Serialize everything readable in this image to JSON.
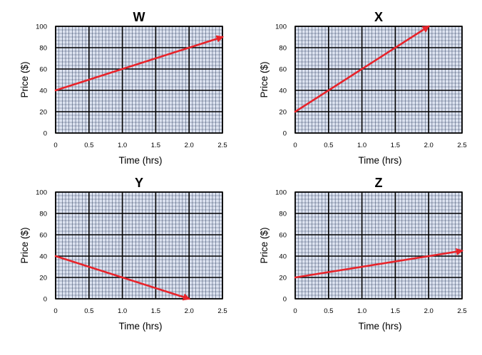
{
  "colors": {
    "grid_bg": "#dde3f0",
    "minor_grid": "#223355",
    "major_grid": "#000000",
    "series": "#e8232a"
  },
  "chart_data": [
    {
      "type": "line",
      "title": "W",
      "xlabel": "Time (hrs)",
      "ylabel": "Price ($)",
      "xlim": [
        0,
        2.5
      ],
      "ylim": [
        0,
        100
      ],
      "xticks": [
        "0",
        "0.5",
        "1.0",
        "1.5",
        "2.0",
        "2.5"
      ],
      "yticks": [
        "0",
        "20",
        "40",
        "60",
        "80",
        "100"
      ],
      "x": [
        0,
        2.5
      ],
      "y": [
        40,
        90
      ]
    },
    {
      "type": "line",
      "title": "X",
      "xlabel": "Time (hrs)",
      "ylabel": "Price ($)",
      "xlim": [
        0,
        2.5
      ],
      "ylim": [
        0,
        100
      ],
      "xticks": [
        "0",
        "0.5",
        "1.0",
        "1.5",
        "2.0",
        "2.5"
      ],
      "yticks": [
        "0",
        "20",
        "40",
        "60",
        "80",
        "100"
      ],
      "x": [
        0,
        2.0
      ],
      "y": [
        20,
        100
      ]
    },
    {
      "type": "line",
      "title": "Y",
      "xlabel": "Time (hrs)",
      "ylabel": "Price ($)",
      "xlim": [
        0,
        2.5
      ],
      "ylim": [
        0,
        100
      ],
      "xticks": [
        "0",
        "0.5",
        "1.0",
        "1.5",
        "2.0",
        "2.5"
      ],
      "yticks": [
        "0",
        "20",
        "40",
        "60",
        "80",
        "100"
      ],
      "x": [
        0,
        2.0
      ],
      "y": [
        40,
        0
      ]
    },
    {
      "type": "line",
      "title": "Z",
      "xlabel": "Time (hrs)",
      "ylabel": "Price ($)",
      "xlim": [
        0,
        2.5
      ],
      "ylim": [
        0,
        100
      ],
      "xticks": [
        "0",
        "0.5",
        "1.0",
        "1.5",
        "2.0",
        "2.5"
      ],
      "yticks": [
        "0",
        "20",
        "40",
        "60",
        "80",
        "100"
      ],
      "x": [
        0,
        2.5
      ],
      "y": [
        20,
        45
      ]
    }
  ]
}
